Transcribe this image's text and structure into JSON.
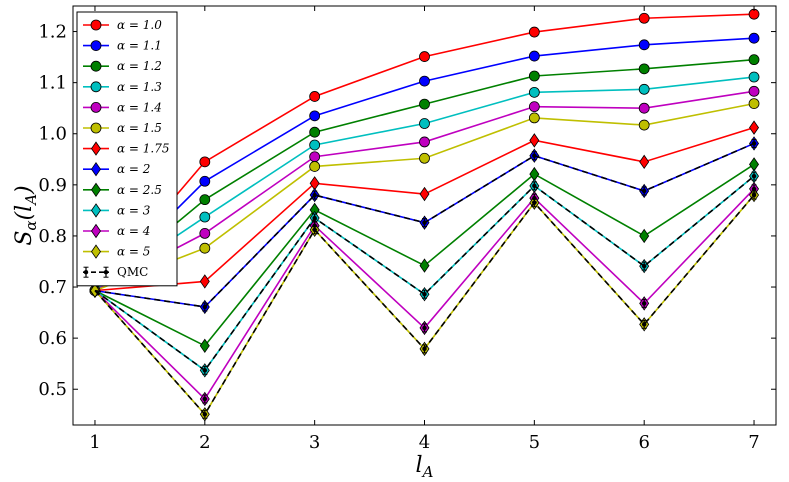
{
  "chart_data": {
    "type": "line",
    "xlabel": "l_A",
    "ylabel": "S_α(l_A)",
    "xlim": [
      0.8,
      7.2
    ],
    "ylim": [
      0.43,
      1.25
    ],
    "xticks": [
      1,
      2,
      3,
      4,
      5,
      6,
      7
    ],
    "yticks": [
      0.5,
      0.6,
      0.7,
      0.8,
      0.9,
      1.0,
      1.1,
      1.2
    ],
    "legend_position": "upper-left",
    "x": [
      1,
      2,
      3,
      4,
      5,
      6,
      7
    ],
    "series": [
      {
        "name": "α = 1.0",
        "color": "#ff0000",
        "marker": "circle",
        "values": [
          0.693,
          0.945,
          1.073,
          1.151,
          1.199,
          1.226,
          1.234
        ]
      },
      {
        "name": "α = 1.1",
        "color": "#0000ff",
        "marker": "circle",
        "values": [
          0.693,
          0.907,
          1.035,
          1.103,
          1.152,
          1.174,
          1.187
        ]
      },
      {
        "name": "α = 1.2",
        "color": "#008000",
        "marker": "circle",
        "values": [
          0.693,
          0.871,
          1.003,
          1.058,
          1.113,
          1.127,
          1.145
        ]
      },
      {
        "name": "α = 1.3",
        "color": "#00bfbf",
        "marker": "circle",
        "values": [
          0.693,
          0.837,
          0.978,
          1.02,
          1.081,
          1.087,
          1.111
        ]
      },
      {
        "name": "α = 1.4",
        "color": "#bf00bf",
        "marker": "circle",
        "values": [
          0.693,
          0.805,
          0.955,
          0.984,
          1.053,
          1.05,
          1.083
        ]
      },
      {
        "name": "α = 1.5",
        "color": "#bfbf00",
        "marker": "circle",
        "values": [
          0.693,
          0.776,
          0.936,
          0.952,
          1.031,
          1.017,
          1.059
        ]
      },
      {
        "name": "α = 1.75",
        "color": "#ff0000",
        "marker": "diamond",
        "values": [
          0.693,
          0.711,
          0.903,
          0.882,
          0.987,
          0.945,
          1.012
        ]
      },
      {
        "name": "α = 2",
        "color": "#0000ff",
        "marker": "diamond",
        "values": [
          0.693,
          0.661,
          0.88,
          0.826,
          0.957,
          0.888,
          0.981
        ]
      },
      {
        "name": "α = 2.5",
        "color": "#008000",
        "marker": "diamond",
        "values": [
          0.693,
          0.585,
          0.851,
          0.742,
          0.921,
          0.8,
          0.94
        ]
      },
      {
        "name": "α = 3",
        "color": "#00bfbf",
        "marker": "diamond",
        "values": [
          0.693,
          0.537,
          0.835,
          0.686,
          0.898,
          0.741,
          0.917
        ]
      },
      {
        "name": "α = 4",
        "color": "#bf00bf",
        "marker": "diamond",
        "values": [
          0.693,
          0.481,
          0.82,
          0.62,
          0.874,
          0.668,
          0.892
        ]
      },
      {
        "name": "α = 5",
        "color": "#bfbf00",
        "marker": "diamond",
        "values": [
          0.693,
          0.451,
          0.812,
          0.579,
          0.865,
          0.627,
          0.88
        ]
      }
    ],
    "qmc": {
      "name": "QMC",
      "color": "#000000",
      "marker": "errorbar",
      "lines": [
        [
          0.693,
          0.661,
          0.88,
          0.826,
          0.957,
          0.888,
          0.981
        ],
        [
          0.693,
          0.537,
          0.835,
          0.686,
          0.898,
          0.741,
          0.917
        ],
        [
          0.693,
          0.451,
          0.812,
          0.579,
          0.865,
          0.627,
          0.88
        ]
      ],
      "points": [
        {
          "x": 2,
          "y": 0.661
        },
        {
          "x": 2,
          "y": 0.537
        },
        {
          "x": 2,
          "y": 0.481
        },
        {
          "x": 2,
          "y": 0.451
        },
        {
          "x": 3,
          "y": 0.88
        },
        {
          "x": 3,
          "y": 0.835
        },
        {
          "x": 3,
          "y": 0.82
        },
        {
          "x": 3,
          "y": 0.812
        },
        {
          "x": 4,
          "y": 0.826
        },
        {
          "x": 4,
          "y": 0.686
        },
        {
          "x": 4,
          "y": 0.62
        },
        {
          "x": 4,
          "y": 0.579
        },
        {
          "x": 5,
          "y": 0.957
        },
        {
          "x": 5,
          "y": 0.898
        },
        {
          "x": 5,
          "y": 0.874
        },
        {
          "x": 5,
          "y": 0.865
        },
        {
          "x": 6,
          "y": 0.888
        },
        {
          "x": 6,
          "y": 0.741
        },
        {
          "x": 6,
          "y": 0.668
        },
        {
          "x": 6,
          "y": 0.627
        },
        {
          "x": 7,
          "y": 0.981
        },
        {
          "x": 7,
          "y": 0.917
        },
        {
          "x": 7,
          "y": 0.892
        },
        {
          "x": 7,
          "y": 0.88
        }
      ]
    }
  }
}
